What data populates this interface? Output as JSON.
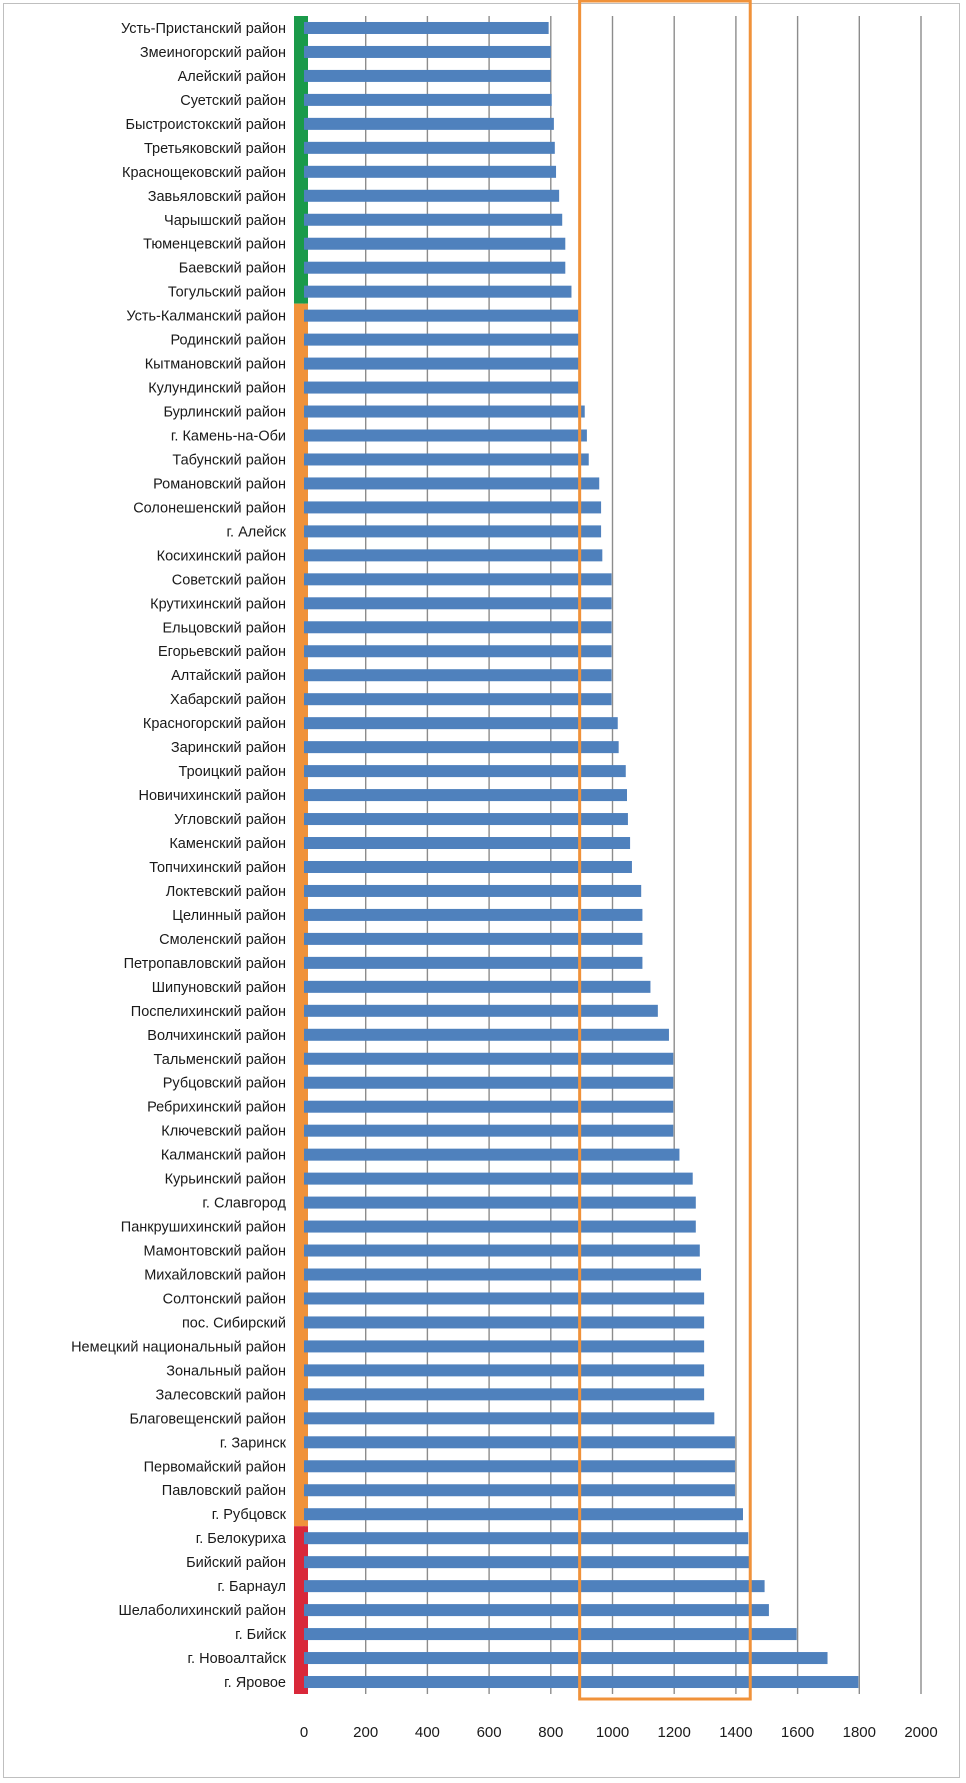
{
  "chart_data": {
    "type": "bar",
    "orientation": "horizontal",
    "title": "",
    "xlabel": "",
    "ylabel": "",
    "xlim": [
      0,
      2000
    ],
    "xticks": [
      0,
      200,
      400,
      600,
      800,
      1000,
      1200,
      1400,
      1600,
      1800,
      2000
    ],
    "grid": true,
    "bar_color": "#4f81bd",
    "grid_color": "#8c8c8c",
    "highlight_box": {
      "color": "#f0923a",
      "from": 900,
      "to": 1440
    },
    "group_colors": {
      "green": "#1a9a4a",
      "orange": "#f0923a",
      "red": "#d9283a"
    },
    "categories": [
      "Усть-Пристанский район",
      "Змеиногорский район",
      "Алейский район",
      "Суетский район",
      "Быстроистокский район",
      "Третьяковский район",
      "Краснощековский район",
      "Завьяловский район",
      "Чарышский район",
      "Тюменцевский район",
      "Баевский район",
      "Тогульский район",
      "Усть-Калманский район",
      "Родинский район",
      "Кытмановский район",
      "Кулундинский район",
      "Бурлинский район",
      "г. Камень-на-Оби",
      "Табунский район",
      "Романовский район",
      "Солонешенский район",
      "г. Алейск",
      "Косихинский район",
      "Советский район",
      "Крутихинский район",
      "Ельцовский район",
      "Егорьевский район",
      "Алтайский район",
      "Хабарский район",
      "Красногорский район",
      "Заринский район",
      "Троицкий район",
      "Новичихинский район",
      "Угловский район",
      "Каменский район",
      "Топчихинский район",
      "Локтевский район",
      "Целинный район",
      "Смоленский район",
      "Петропавловский район",
      "Шипуновский район",
      "Поспелихинский район",
      "Волчихинский район",
      "Тальменский район",
      "Рубцовский район",
      "Ребрихинский район",
      "Ключевский район",
      "Калманский район",
      "Курьинский район",
      "г. Славгород",
      "Панкрушихинский район",
      "Мамонтовский район",
      "Михайловский район",
      "Солтонский район",
      "пос. Сибирский",
      "Немецкий национальный район",
      "Зональный район",
      "Залесовский район",
      "Благовещенский район",
      "г. Заринск",
      "Первомайский район",
      "Павловский район",
      "г. Рубцовск",
      "г. Белокуриха",
      "Бийский район",
      "г. Барнаул",
      "Шелаболихинский район",
      "г. Бийск",
      "г. Новоалтайск",
      "г. Яровое"
    ],
    "values": [
      793,
      800,
      800,
      803,
      810,
      813,
      817,
      827,
      837,
      847,
      847,
      867,
      893,
      897,
      897,
      897,
      910,
      917,
      923,
      957,
      963,
      963,
      967,
      997,
      997,
      997,
      997,
      997,
      997,
      1017,
      1020,
      1043,
      1047,
      1050,
      1057,
      1063,
      1093,
      1097,
      1097,
      1097,
      1123,
      1147,
      1183,
      1197,
      1197,
      1197,
      1197,
      1217,
      1260,
      1270,
      1270,
      1283,
      1287,
      1297,
      1297,
      1297,
      1297,
      1297,
      1330,
      1397,
      1397,
      1397,
      1423,
      1440,
      1450,
      1493,
      1507,
      1597,
      1697,
      1797
    ],
    "groups": [
      {
        "color": "green",
        "count": 12
      },
      {
        "color": "orange",
        "count": 51
      },
      {
        "color": "red",
        "count": 7
      }
    ]
  }
}
